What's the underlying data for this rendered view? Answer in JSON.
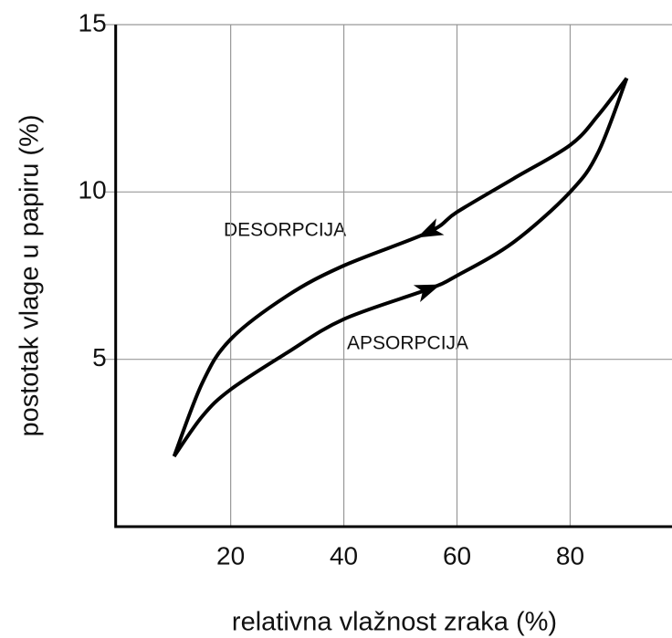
{
  "chart_data": {
    "type": "line",
    "xlabel": "relativna vlažnost zraka (%)",
    "ylabel": "postotak vlage u papiru (%)",
    "x": [
      10,
      15,
      20,
      30,
      40,
      55,
      60,
      70,
      80,
      85,
      90
    ],
    "series": [
      {
        "name": "DESORPCIJA",
        "color": "#000000",
        "values": [
          2.1,
          4.3,
          5.6,
          6.9,
          7.8,
          8.8,
          9.4,
          10.4,
          11.4,
          12.3,
          13.4
        ]
      },
      {
        "name": "APSORPCIJA",
        "color": "#000000",
        "values": [
          2.1,
          3.3,
          4.1,
          5.2,
          6.2,
          7.1,
          7.5,
          8.5,
          10.0,
          11.2,
          13.4
        ]
      }
    ],
    "xlim": [
      0,
      98
    ],
    "ylim": [
      0,
      15
    ],
    "xticks": [
      20,
      40,
      60,
      80
    ],
    "yticks": [
      5,
      10,
      15
    ],
    "grid": true
  }
}
